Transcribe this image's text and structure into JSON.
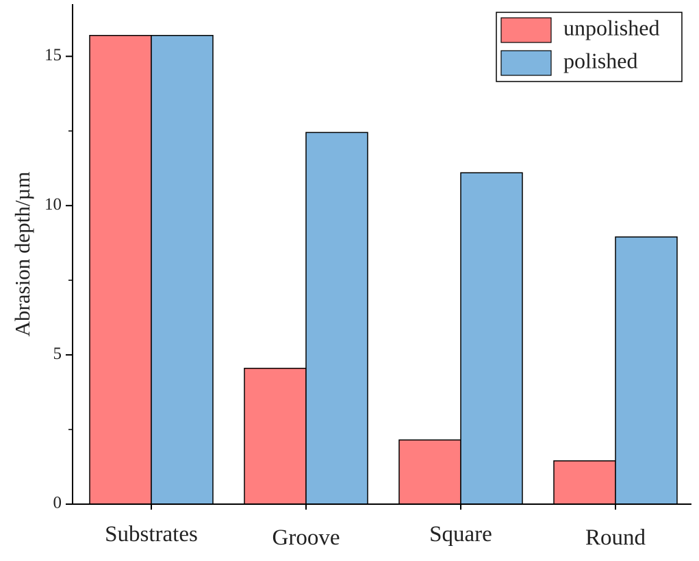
{
  "chart_data": {
    "type": "bar",
    "title": "",
    "xlabel": "",
    "ylabel": "Abrasion depth/µm",
    "categories": [
      "Substrates",
      "Groove",
      "Square",
      "Round"
    ],
    "series": [
      {
        "name": "unpolished",
        "values": [
          15.7,
          4.55,
          2.15,
          1.45
        ],
        "color": "#ff7f7f"
      },
      {
        "name": "polished",
        "values": [
          15.7,
          12.45,
          11.1,
          8.95
        ],
        "color": "#7fb5df"
      }
    ],
    "ylim": [
      0,
      16.75
    ],
    "yticks_major": [
      0,
      5,
      10,
      15
    ],
    "yticks_minor": [
      2.5,
      7.5,
      12.5
    ],
    "grid": false,
    "legend": "top-right"
  }
}
